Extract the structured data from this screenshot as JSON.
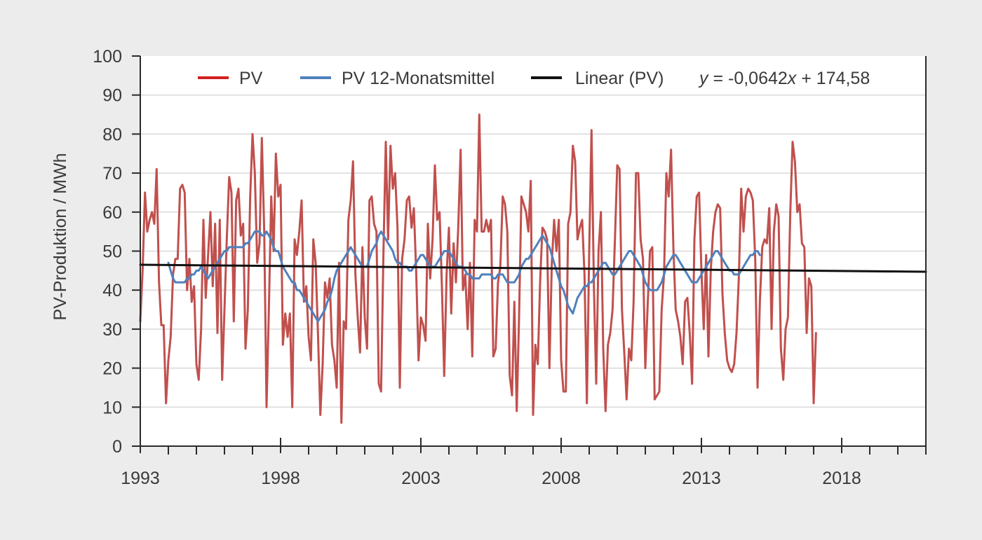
{
  "chart_data": {
    "type": "line",
    "title": "",
    "xlabel": "",
    "ylabel": "PV-Produktion / MWh",
    "xlim": [
      1993,
      2021.0
    ],
    "ylim": [
      0,
      100
    ],
    "x_ticks": [
      "1993",
      "1998",
      "2003",
      "2008",
      "2013",
      "2018"
    ],
    "y_ticks": [
      "0",
      "10",
      "20",
      "30",
      "40",
      "50",
      "60",
      "70",
      "80",
      "90",
      "100"
    ],
    "grid": "horizontal",
    "legend_position": "top",
    "legend": {
      "pv": "PV",
      "avg": "PV 12-Monatsmittel",
      "trend": "Linear (PV)"
    },
    "trend_equation": {
      "y": "y",
      "middle": " = -0,0642",
      "x": "x",
      "end": " + 174,58"
    },
    "colors": {
      "pv": "#c0504d",
      "pv_legend": "#d42020",
      "avg": "#4f81bd",
      "trend": "#111111",
      "grid": "#d9d9d9",
      "axis": "#2a2a2a"
    },
    "series": [
      {
        "name": "PV",
        "x_start": 1993.0,
        "x_step": 0.0833333,
        "values": [
          32,
          45,
          65,
          55,
          58,
          60,
          57,
          71,
          42,
          31,
          31,
          11,
          22,
          28,
          44,
          48,
          48,
          66,
          67,
          65,
          40,
          48,
          37,
          41,
          21,
          17,
          30,
          58,
          38,
          49,
          60,
          41,
          57,
          29,
          58,
          17,
          35,
          53,
          69,
          65,
          32,
          63,
          66,
          54,
          57,
          25,
          35,
          64,
          80,
          70,
          47,
          52,
          79,
          55,
          10,
          35,
          64,
          50,
          75,
          64,
          67,
          26,
          34,
          28,
          34,
          10,
          53,
          49,
          55,
          63,
          37,
          41,
          28,
          22,
          53,
          47,
          29,
          8,
          21,
          42,
          38,
          43,
          26,
          22,
          15,
          47,
          6,
          32,
          30,
          58,
          63,
          73,
          44,
          33,
          24,
          51,
          33,
          25,
          63,
          64,
          57,
          55,
          16,
          14,
          50,
          78,
          53,
          77,
          66,
          70,
          56,
          15,
          48,
          53,
          63,
          64,
          56,
          61,
          45,
          22,
          33,
          31,
          27,
          57,
          43,
          53,
          72,
          58,
          60,
          41,
          18,
          44,
          56,
          34,
          52,
          42,
          56,
          76,
          40,
          44,
          30,
          47,
          23,
          58,
          55,
          85,
          55,
          55,
          58,
          55,
          58,
          23,
          25,
          42,
          46,
          64,
          62,
          55,
          18,
          13,
          37,
          9,
          33,
          64,
          62,
          60,
          55,
          68,
          8,
          26,
          21,
          42,
          56,
          55,
          53,
          20,
          47,
          58,
          50,
          58,
          22,
          14,
          14,
          57,
          60,
          77,
          73,
          53,
          56,
          58,
          44,
          11,
          50,
          81,
          41,
          16,
          50,
          60,
          25,
          9,
          26,
          29,
          35,
          53,
          72,
          71,
          35,
          24,
          12,
          25,
          22,
          37,
          70,
          70,
          53,
          48,
          20,
          36,
          50,
          51,
          12,
          13,
          14,
          35,
          44,
          70,
          64,
          76,
          51,
          35,
          32,
          28,
          21,
          37,
          38,
          29,
          16,
          53,
          64,
          65,
          45,
          30,
          49,
          23,
          45,
          55,
          60,
          62,
          61,
          39,
          29,
          22,
          20,
          19,
          21,
          29,
          43,
          66,
          55,
          64,
          66,
          65,
          63,
          48,
          15,
          37,
          51,
          53,
          52,
          61,
          30,
          55,
          62,
          59,
          25,
          17,
          30,
          33,
          60,
          78,
          73,
          60,
          62,
          52,
          51,
          29,
          43,
          41,
          11,
          29
        ]
      },
      {
        "name": "PV 12-Monatsmittel",
        "x_start": 1994.0,
        "x_step": 0.0833333,
        "values": [
          47,
          45,
          43,
          42,
          42,
          42,
          42,
          42,
          43,
          43,
          44,
          44,
          45,
          45,
          46,
          45,
          44,
          43,
          44,
          45,
          46,
          47,
          48,
          49,
          50,
          50,
          51,
          51,
          51,
          51,
          51,
          51,
          51,
          52,
          52,
          53,
          54,
          55,
          55,
          55,
          54,
          54,
          55,
          54,
          53,
          51,
          50,
          50,
          48,
          46,
          45,
          44,
          43,
          42,
          42,
          40,
          40,
          39,
          38,
          37,
          36,
          35,
          34,
          33,
          32,
          33,
          34,
          35,
          37,
          38,
          40,
          43,
          45,
          46,
          47,
          48,
          49,
          50,
          51,
          50,
          49,
          48,
          47,
          46,
          46,
          46,
          48,
          50,
          51,
          52,
          54,
          55,
          54,
          53,
          52,
          51,
          50,
          48,
          47,
          47,
          46,
          46,
          46,
          45,
          45,
          46,
          47,
          48,
          49,
          49,
          48,
          47,
          46,
          46,
          46,
          47,
          48,
          49,
          50,
          50,
          50,
          49,
          48,
          47,
          46,
          46,
          46,
          45,
          44,
          44,
          43,
          43,
          43,
          43,
          44,
          44,
          44,
          44,
          44,
          43,
          43,
          44,
          44,
          44,
          43,
          42,
          42,
          42,
          42,
          43,
          44,
          46,
          47,
          48,
          48,
          49,
          50,
          51,
          52,
          53,
          54,
          53,
          52,
          51,
          49,
          47,
          45,
          43,
          41,
          40,
          38,
          36,
          35,
          34,
          36,
          38,
          39,
          40,
          41,
          41,
          42,
          42,
          43,
          44,
          45,
          46,
          47,
          47,
          46,
          45,
          44,
          44,
          45,
          46,
          47,
          48,
          49,
          50,
          50,
          49,
          48,
          47,
          46,
          44,
          42,
          41,
          40,
          40,
          40,
          40,
          41,
          42,
          44,
          46,
          47,
          48,
          49,
          49,
          48,
          47,
          46,
          45,
          44,
          43,
          42,
          42,
          42,
          43,
          44,
          45,
          46,
          47,
          48,
          49,
          50,
          50,
          49,
          48,
          47,
          46,
          45,
          45,
          44,
          44,
          44,
          45,
          46,
          47,
          48,
          49,
          49,
          50,
          50,
          49
        ]
      },
      {
        "name": "Linear (PV)",
        "x": [
          1993.0,
          2021.0
        ],
        "values": [
          46.5,
          44.7
        ]
      }
    ]
  }
}
